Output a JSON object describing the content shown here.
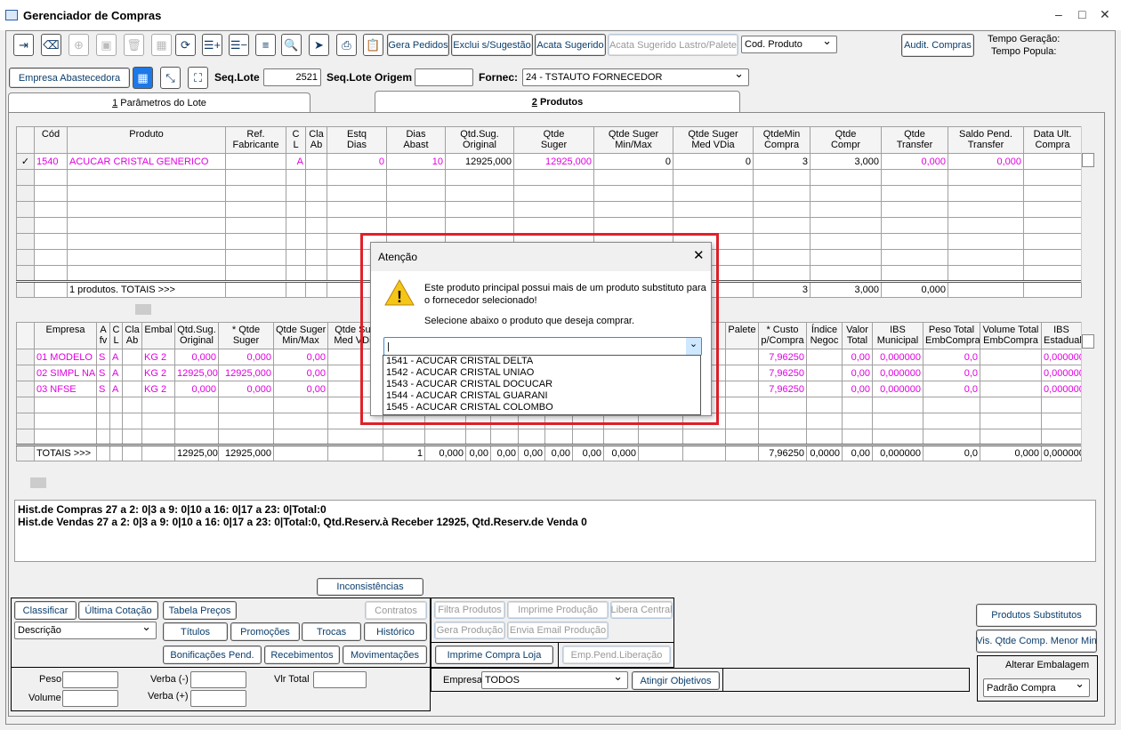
{
  "window": {
    "title": "Gerenciador de Compras",
    "minimize": "–",
    "maximize": "□",
    "close": "✕"
  },
  "toolbar": {
    "icons": [
      {
        "name": "exit-icon",
        "glyph": "⇥",
        "enabled": true
      },
      {
        "name": "eraser-icon",
        "glyph": "⌫",
        "enabled": true
      },
      {
        "name": "add-icon",
        "glyph": "⊕",
        "enabled": false
      },
      {
        "name": "save-icon",
        "glyph": "▣",
        "enabled": false
      },
      {
        "name": "trash-icon",
        "glyph": "🗑",
        "enabled": false
      },
      {
        "name": "grid-icon",
        "glyph": "▦",
        "enabled": false
      },
      {
        "name": "refresh-icon",
        "glyph": "⟳",
        "enabled": true
      },
      {
        "name": "list-add-icon",
        "glyph": "☰+",
        "enabled": true
      },
      {
        "name": "list-remove-icon",
        "glyph": "☰−",
        "enabled": true
      },
      {
        "name": "filter-icon",
        "glyph": "≡",
        "enabled": true
      },
      {
        "name": "search-box-icon",
        "glyph": "🔍",
        "enabled": true
      },
      {
        "name": "send-icon",
        "glyph": "➤",
        "enabled": true
      },
      {
        "name": "print-icon",
        "glyph": "⎙",
        "enabled": true
      },
      {
        "name": "clipboard-icon",
        "glyph": "📋",
        "enabled": true
      }
    ],
    "gera_pedidos": "Gera Pedidos",
    "exclui_sugestao": "Exclui s/Sugestão",
    "acata_sugerido": "Acata Sugerido",
    "acata_lastro": "Acata Sugerido Lastro/Palete",
    "cod_produto": "Cod. Produto",
    "audit_compras": "Audit. Compras",
    "tempo_geracao": "Tempo Geração:",
    "tempo_popula": "Tempo Popula:"
  },
  "lote": {
    "empresa_abastecedora": "Empresa Abastecedora",
    "seq_lote_label": "Seq.Lote",
    "seq_lote": "2521",
    "seq_lote_origem_label": "Seq.Lote Origem",
    "seq_lote_origem": "",
    "fornec_label": "Fornec:",
    "fornec": "24 - TSTAUTO FORNECEDOR"
  },
  "tabs": [
    {
      "num": "1",
      "label": "Parâmetros do Lote",
      "active": false
    },
    {
      "num": "2",
      "label": "Produtos",
      "active": true
    }
  ],
  "produtos_grid": {
    "headers": [
      "",
      "Cód",
      "Produto",
      "Ref.\nFabricante",
      "C\nL",
      "Cla\nAb",
      "Estq\nDias",
      "Dias\nAbast",
      "Qtd.Sug.\nOriginal",
      "Qtde\nSuger",
      "Qtde Suger\nMin/Max",
      "Qtde Suger\nMed VDia",
      "QtdeMin\nCompra",
      "Qtde\nCompr",
      "Qtde\nTransfer",
      "Saldo Pend.\nTransfer",
      "Data Ult.\nCompra"
    ],
    "rows": [
      [
        "✓",
        "1540",
        "ACUCAR CRISTAL GENERICO",
        "",
        "A",
        "",
        "0",
        "10",
        "12925,000",
        "12925,000",
        "0",
        "0",
        "3",
        "3,000",
        "0,000",
        "0,000",
        ""
      ]
    ],
    "totals": [
      "",
      "",
      "1 produtos. TOTAIS >>>",
      "",
      "",
      "",
      "",
      "",
      "",
      "",
      "",
      "",
      "3",
      "3,000",
      "0,000",
      "",
      ""
    ]
  },
  "empresas_grid": {
    "headers": [
      "",
      "Empresa",
      "A\nfv",
      "C\nL",
      "Cla\nAb",
      "Embal",
      "Qtd.Sug.\nOriginal",
      "* Qtde\nSuger",
      "Qtde Suger\nMin/Max",
      "Qtde Sug\nMed VDia",
      "",
      "",
      "",
      "",
      "",
      "",
      "",
      "",
      "",
      "",
      "Palete",
      "* Custo\np/Compra",
      "Índice\nNegoc",
      "Valor\nTotal",
      "IBS\nMunicipal",
      "Peso Total\nEmbCompra",
      "Volume Total\nEmbCompra",
      "IBS\nEstadual"
    ],
    "rows": [
      [
        "",
        "01 MODELO",
        "S",
        "A",
        "",
        "KG 2",
        "0,000",
        "0,000",
        "0,00",
        "",
        "",
        "",
        "",
        "",
        "",
        "",
        "",
        "",
        "",
        "",
        "",
        "7,96250",
        "",
        "0,00",
        "0,000000",
        "0,0",
        "",
        "0,000000"
      ],
      [
        "",
        "02 SIMPL NA",
        "S",
        "A",
        "",
        "KG 2",
        "12925,000",
        "12925,000",
        "0,00",
        "",
        "",
        "",
        "",
        "",
        "",
        "",
        "",
        "",
        "",
        "",
        "",
        "7,96250",
        "",
        "0,00",
        "0,000000",
        "0,0",
        "",
        "0,000000"
      ],
      [
        "",
        "03 NFSE",
        "S",
        "A",
        "",
        "KG 2",
        "0,000",
        "0,000",
        "0,00",
        "",
        "",
        "",
        "",
        "",
        "",
        "",
        "",
        "",
        "",
        "",
        "",
        "7,96250",
        "",
        "0,00",
        "0,000000",
        "0,0",
        "",
        "0,000000"
      ]
    ],
    "totals": [
      "",
      "TOTAIS >>>",
      "",
      "",
      "",
      "",
      "12925,000",
      "12925,000",
      "",
      "",
      "1",
      "0,000",
      "0,00",
      "0,00",
      "0,00",
      "0,00",
      "0,00",
      "0,000",
      "",
      "",
      "",
      "7,96250",
      "0,0000",
      "0,00",
      "0,000000",
      "0,0",
      "0,000",
      "0,000000"
    ]
  },
  "historico": {
    "compras": "Hist.de Compras 27 a 2: 0|3 a 9: 0|10 a 16: 0|17 a 23: 0|Total:0",
    "vendas": "Hist.de Vendas 27 a 2: 0|3 a 9: 0|10 a 16: 0|17 a 23: 0|Total:0, Qtd.Reserv.à Receber 12925, Qtd.Reserv.de Venda 0"
  },
  "bottom": {
    "inconsistencias": "Inconsistências",
    "classificar": "Classificar",
    "ultima_cotacao": "Última Cotação",
    "tabela_precos": "Tabela Preços",
    "contratos": "Contratos",
    "ordenacao": "Descrição",
    "titulos": "Títulos",
    "promocoes": "Promoções",
    "trocas": "Trocas",
    "historico": "Histórico",
    "bonificacoes": "Bonificações Pend.",
    "recebimentos": "Recebimentos",
    "movimentacoes": "Movimentações",
    "filtra_produtos": "Filtra Produtos",
    "imprime_producao": "Imprime Produção",
    "libera_central": "Libera Central",
    "gera_producao": "Gera Produção",
    "envia_email": "Envia Email Produção",
    "imprime_compra_loja": "Imprime Compra Loja",
    "emp_pend_liberacao": "Emp.Pend.Liberação",
    "peso": "Peso",
    "volume": "Volume",
    "verba_menos": "Verba (-)",
    "verba_mais": "Verba (+)",
    "vlr_total": "Vlr Total",
    "empresa_label": "Empresa",
    "empresa": "TODOS",
    "atingir_objetivos": "Atingir Objetivos",
    "produtos_substitutos": "Produtos Substitutos",
    "vis_qtde": "Vis. Qtde Comp. Menor Min",
    "alterar_embalagem": "Alterar Embalagem",
    "embalagem": "Padrão Compra"
  },
  "dialog": {
    "title": "Atenção",
    "message": "Este produto principal possui mais de um produto substituto para o fornecedor selecionado!",
    "instruction": "Selecione abaixo o produto que deseja comprar.",
    "selected": "",
    "options": [
      "1541 - ACUCAR CRISTAL DELTA",
      "1542 - ACUCAR CRISTAL UNIAO",
      "1543 - ACUCAR CRISTAL DOCUCAR",
      "1544 - ACUCAR CRISTAL GUARANI",
      "1545 - ACUCAR CRISTAL COLOMBO"
    ]
  },
  "colors": {
    "magenta": "#e000e0",
    "highlight": "#e0202a",
    "link_blue": "#0a3d6b"
  }
}
